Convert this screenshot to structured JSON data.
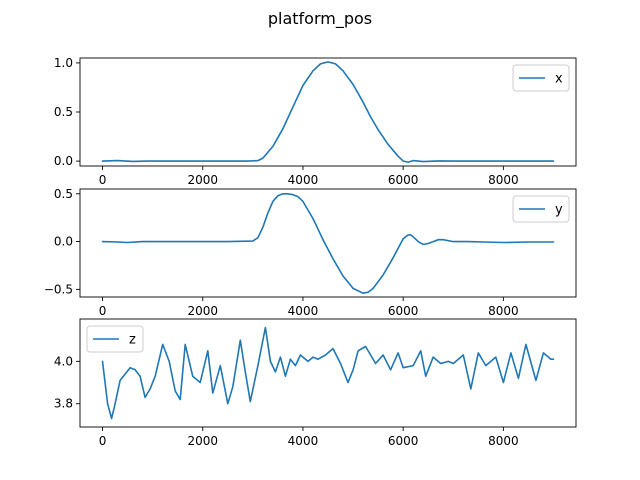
{
  "figure": {
    "title": "platform_pos"
  },
  "chart_data": [
    {
      "type": "line",
      "title": "",
      "xlabel": "",
      "ylabel": "",
      "xlim": [
        -450,
        9450
      ],
      "ylim": [
        -0.05,
        1.05
      ],
      "xticks": [
        0,
        2000,
        4000,
        6000,
        8000
      ],
      "xtick_labels": [
        "0",
        "2000",
        "4000",
        "6000",
        "8000"
      ],
      "yticks": [
        0.0,
        0.5,
        1.0
      ],
      "ytick_labels": [
        "0.0",
        "0.5",
        "1.0"
      ],
      "legend": "top-right",
      "grid": false,
      "series": [
        {
          "name": "x",
          "color": "#1f77b4",
          "x": [
            0,
            300,
            600,
            900,
            1500,
            2000,
            2500,
            2900,
            3100,
            3200,
            3400,
            3600,
            3800,
            4000,
            4200,
            4350,
            4500,
            4650,
            4800,
            5000,
            5200,
            5350,
            5500,
            5700,
            5900,
            6000,
            6100,
            6200,
            6400,
            6700,
            7000,
            7500,
            8000,
            8500,
            9000
          ],
          "y": [
            0.0,
            0.005,
            -0.003,
            0.0,
            0.0,
            0.0,
            0.0,
            0.0,
            0.005,
            0.03,
            0.15,
            0.33,
            0.55,
            0.77,
            0.92,
            0.99,
            1.01,
            0.99,
            0.92,
            0.78,
            0.6,
            0.45,
            0.32,
            0.17,
            0.05,
            0.0,
            -0.01,
            0.005,
            -0.005,
            0.002,
            0.0,
            0.0,
            0.0,
            0.0,
            0.0
          ]
        }
      ]
    },
    {
      "type": "line",
      "title": "",
      "xlabel": "",
      "ylabel": "",
      "xlim": [
        -450,
        9450
      ],
      "ylim": [
        -0.58,
        0.55
      ],
      "xticks": [
        0,
        2000,
        4000,
        6000,
        8000
      ],
      "xtick_labels": [
        "0",
        "2000",
        "4000",
        "6000",
        "8000"
      ],
      "yticks": [
        -0.5,
        0.0,
        0.5
      ],
      "ytick_labels": [
        "−0.5",
        "0.0",
        "0.5"
      ],
      "legend": "top-right",
      "grid": false,
      "series": [
        {
          "name": "y",
          "color": "#1f77b4",
          "x": [
            0,
            300,
            500,
            800,
            1500,
            2000,
            2500,
            3000,
            3100,
            3200,
            3300,
            3400,
            3500,
            3600,
            3700,
            3800,
            3900,
            4000,
            4200,
            4400,
            4600,
            4800,
            5000,
            5200,
            5300,
            5400,
            5600,
            5800,
            6000,
            6100,
            6150,
            6200,
            6300,
            6400,
            6500,
            6600,
            6700,
            6800,
            7000,
            7300,
            7600,
            8000,
            8500,
            9000
          ],
          "y": [
            0.0,
            -0.005,
            -0.01,
            0.0,
            0.0,
            0.0,
            0.0,
            0.005,
            0.04,
            0.15,
            0.3,
            0.42,
            0.48,
            0.5,
            0.5,
            0.49,
            0.47,
            0.42,
            0.24,
            0.02,
            -0.18,
            -0.36,
            -0.49,
            -0.54,
            -0.53,
            -0.49,
            -0.35,
            -0.17,
            0.03,
            0.07,
            0.07,
            0.05,
            0.0,
            -0.03,
            -0.02,
            0.0,
            0.02,
            0.02,
            0.0,
            0.0,
            -0.005,
            -0.01,
            -0.005,
            -0.005
          ]
        }
      ]
    },
    {
      "type": "line",
      "title": "",
      "xlabel": "",
      "ylabel": "",
      "xlim": [
        -450,
        9450
      ],
      "ylim": [
        3.69,
        4.2
      ],
      "xticks": [
        0,
        2000,
        4000,
        6000,
        8000
      ],
      "xtick_labels": [
        "0",
        "2000",
        "4000",
        "6000",
        "8000"
      ],
      "yticks": [
        3.8,
        4.0
      ],
      "ytick_labels": [
        "3.8",
        "4.0"
      ],
      "legend": "top-left",
      "grid": false,
      "series": [
        {
          "name": "z",
          "color": "#1f77b4",
          "x": [
            0,
            100,
            180,
            250,
            350,
            450,
            550,
            650,
            750,
            850,
            950,
            1050,
            1200,
            1330,
            1450,
            1550,
            1650,
            1800,
            1950,
            2100,
            2200,
            2350,
            2500,
            2600,
            2750,
            2850,
            2950,
            3100,
            3250,
            3350,
            3450,
            3550,
            3650,
            3750,
            3850,
            3950,
            4100,
            4200,
            4300,
            4450,
            4600,
            4750,
            4900,
            5000,
            5100,
            5250,
            5450,
            5600,
            5750,
            5900,
            6000,
            6200,
            6350,
            6450,
            6600,
            6750,
            6900,
            7000,
            7200,
            7350,
            7500,
            7650,
            7850,
            8000,
            8150,
            8300,
            8450,
            8650,
            8800,
            8950,
            9000
          ],
          "y": [
            4.0,
            3.8,
            3.73,
            3.8,
            3.91,
            3.94,
            3.97,
            3.96,
            3.93,
            3.83,
            3.87,
            3.93,
            4.08,
            4.0,
            3.86,
            3.82,
            4.08,
            3.93,
            3.9,
            4.05,
            3.85,
            3.98,
            3.8,
            3.88,
            4.1,
            3.95,
            3.81,
            3.98,
            4.16,
            4.0,
            3.95,
            4.02,
            3.93,
            4.01,
            3.98,
            4.03,
            4.0,
            4.02,
            4.01,
            4.03,
            4.06,
            3.99,
            3.9,
            3.96,
            4.05,
            4.07,
            3.99,
            4.03,
            3.96,
            4.04,
            3.97,
            3.98,
            4.05,
            3.93,
            4.02,
            3.99,
            4.0,
            3.99,
            4.03,
            3.87,
            4.04,
            3.98,
            4.02,
            3.9,
            4.04,
            3.92,
            4.08,
            3.91,
            4.04,
            4.01,
            4.01
          ]
        }
      ]
    }
  ]
}
